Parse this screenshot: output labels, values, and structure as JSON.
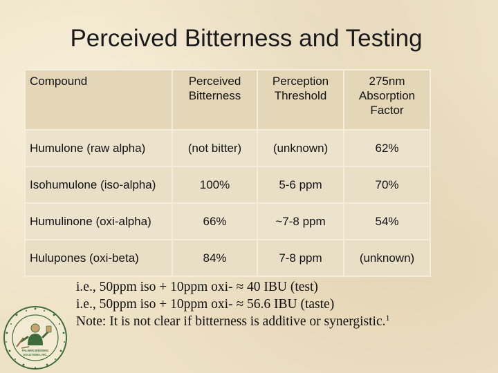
{
  "title": "Perceived Bitterness and Testing",
  "table": {
    "headers": [
      "Compound",
      "Perceived Bitterness",
      "Perception Threshold",
      "275nm Absorption Factor"
    ],
    "rows": [
      [
        "Humulone (raw alpha)",
        "(not bitter)",
        "(unknown)",
        "62%"
      ],
      [
        "Isohumulone (iso-alpha)",
        "100%",
        "5-6 ppm",
        "70%"
      ],
      [
        "Humulinone (oxi-alpha)",
        "66%",
        "~7-8 ppm",
        "54%"
      ],
      [
        "Hulupones (oxi-beta)",
        "84%",
        "7-8 ppm",
        "(unknown)"
      ]
    ]
  },
  "notes": {
    "line1": "i.e., 50ppm iso + 10ppm oxi- ≈ 40 IBU (test)",
    "line2": "i.e., 50ppm iso + 10ppm oxi- ≈ 56.6 IBU (taste)",
    "line3": "Note: It is not clear if bitterness is additive or synergistic.",
    "footnote_mark": "1"
  },
  "logo": {
    "text_top": "PALMER BREWING",
    "text_bottom": "SOLUTIONS, INC."
  },
  "colors": {
    "background": "#eee2c6",
    "header_cell": "#e3d7b8",
    "row_cell": "#e9dfc7",
    "logo_green": "#3f6b3a"
  }
}
